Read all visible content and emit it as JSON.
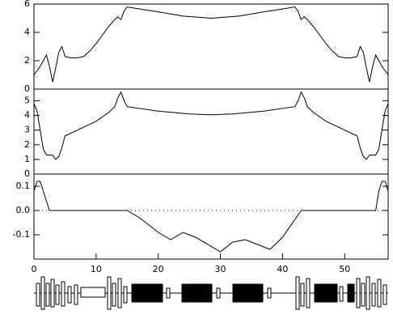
{
  "chart_data": [
    {
      "type": "line",
      "color": "#000000",
      "xlim": [
        0,
        57
      ],
      "ylim": [
        0,
        6
      ],
      "yticks": [
        0,
        2,
        4,
        6
      ],
      "x": [
        0,
        1,
        2,
        2.5,
        3,
        3.5,
        4,
        4.5,
        5,
        6,
        7,
        8,
        9,
        10,
        11,
        12,
        13,
        13.5,
        14,
        14.5,
        15,
        17,
        20,
        24,
        28.5,
        33,
        37,
        40,
        42,
        42.5,
        43,
        43.5,
        44,
        45,
        46,
        47,
        48,
        49,
        50,
        51,
        52,
        52.5,
        53,
        53.5,
        54,
        54.5,
        55,
        56,
        57
      ],
      "values": [
        1.0,
        1.6,
        2.4,
        1.6,
        0.5,
        1.5,
        2.6,
        3.0,
        2.3,
        2.2,
        2.2,
        2.3,
        2.7,
        3.2,
        3.8,
        4.4,
        4.9,
        5.1,
        4.9,
        5.5,
        5.8,
        5.65,
        5.45,
        5.15,
        5.0,
        5.15,
        5.45,
        5.65,
        5.8,
        5.5,
        4.9,
        5.1,
        4.9,
        4.4,
        3.8,
        3.2,
        2.7,
        2.3,
        2.2,
        2.2,
        2.3,
        3.0,
        2.6,
        1.5,
        0.5,
        1.6,
        2.4,
        1.6,
        1.0
      ]
    },
    {
      "type": "line",
      "color": "#000000",
      "xlim": [
        0,
        57
      ],
      "ylim": [
        0,
        5.8
      ],
      "yticks": [
        0,
        1,
        2,
        3,
        4,
        5
      ],
      "x": [
        0,
        0.5,
        1,
        1.5,
        2,
        3,
        3.5,
        4,
        4.5,
        5,
        7,
        10,
        12,
        13,
        13.5,
        14,
        14.5,
        15,
        20,
        25,
        28.5,
        32,
        37,
        42,
        42.5,
        43,
        43.5,
        44,
        45,
        47,
        50,
        52,
        52.5,
        53,
        53.5,
        54,
        55,
        55.5,
        56,
        56.5,
        57
      ],
      "values": [
        4.8,
        4.3,
        3.0,
        1.7,
        1.3,
        1.3,
        1.0,
        1.2,
        1.8,
        2.6,
        3.0,
        3.6,
        4.2,
        4.6,
        5.2,
        5.6,
        5.0,
        4.6,
        4.3,
        4.1,
        4.05,
        4.1,
        4.3,
        4.6,
        5.0,
        5.6,
        5.2,
        4.6,
        4.2,
        3.6,
        3.0,
        2.6,
        1.8,
        1.2,
        1.0,
        1.3,
        1.3,
        1.7,
        3.0,
        4.3,
        4.8
      ]
    },
    {
      "type": "line",
      "color": "#000000",
      "xlim": [
        0,
        57
      ],
      "ylim": [
        -0.2,
        0.15
      ],
      "yticks": [
        0.1,
        {
          "value": 0,
          "label": "0.0"
        },
        -0.1
      ],
      "xticks": [
        0,
        10,
        20,
        30,
        40,
        50
      ],
      "zero_line": true,
      "x": [
        0,
        0.5,
        1,
        1.5,
        2.5,
        15,
        17,
        20,
        22,
        24,
        26,
        30,
        32,
        34,
        38,
        40,
        43,
        55,
        55.5,
        56,
        56.5,
        57
      ],
      "values": [
        0.08,
        0.12,
        0.12,
        0.08,
        0,
        0,
        -0.03,
        -0.09,
        -0.12,
        -0.09,
        -0.11,
        -0.17,
        -0.13,
        -0.12,
        -0.16,
        -0.11,
        0,
        0,
        0.08,
        0.12,
        0.12,
        0.08
      ]
    }
  ]
}
